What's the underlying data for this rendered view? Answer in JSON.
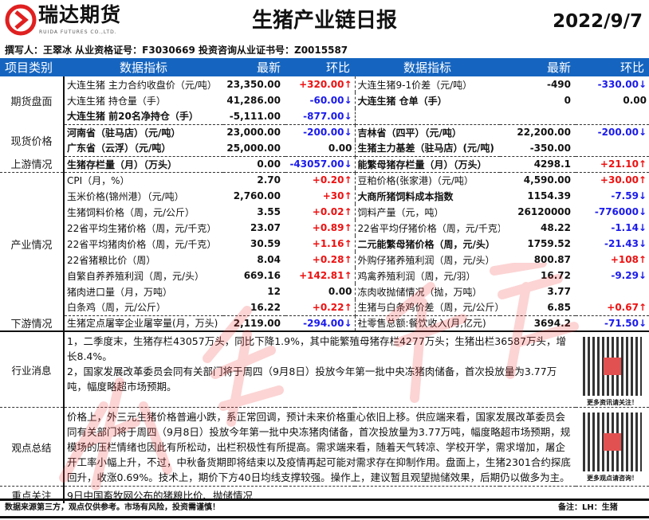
{
  "header": {
    "brand": "瑞达期货",
    "brand_en": "RUIDA FUTURES CO.,LTD.",
    "title": "生猪产业链日报",
    "date": "2022/9/7",
    "author_line": "撰写人：王翠冰  从业资格证号：F3030669   投资咨询从业证书号：Z0015587"
  },
  "columns": {
    "category": "项目类别",
    "indicator": "数据指标",
    "latest": "最新",
    "change": "环比",
    "indicator2": "数据指标",
    "latest2": "最新",
    "change2": "环比"
  },
  "sections": [
    {
      "category": "期货盘面",
      "rows": [
        [
          {
            "label": "大连生猪 主力合约收盘价（元/吨）",
            "value": "23,350.00",
            "change": "+320.00↑",
            "dir": "up"
          },
          {
            "label": "大连生猪9-1价差（元/吨）",
            "value": "-490",
            "change": "-330.00↓",
            "dir": "down"
          }
        ],
        [
          {
            "label": "大连生猪 持仓量（手）",
            "value": "41,286.00",
            "change": "-60.00↓",
            "dir": "down"
          },
          {
            "label": "大连生猪 仓单（手）",
            "bold": true,
            "value": "0",
            "change": "0.00",
            "dir": "flat"
          }
        ],
        [
          {
            "label": "大连生猪 前20名净持仓（手）",
            "bold": true,
            "value": "-5,111.00",
            "change": "-877.00↓",
            "dir": "down"
          },
          {
            "label": "",
            "value": "",
            "change": "",
            "dir": "flat"
          }
        ]
      ]
    },
    {
      "category": "现货价格",
      "rows": [
        [
          {
            "label": "河南省（驻马店）（元/吨）",
            "bold": true,
            "value": "23,000.00",
            "change": "-200.00↓",
            "dir": "down"
          },
          {
            "label": "吉林省（四平）（元/吨）",
            "bold": true,
            "value": "22,200.00",
            "change": "-200.00↓",
            "dir": "down"
          }
        ],
        [
          {
            "label": "广东省（云浮）（元/吨）",
            "bold": true,
            "value": "25,000.00",
            "change": "0.00",
            "dir": "flat"
          },
          {
            "label": "生猪主力基差（驻马店）(元/吨)",
            "bold": true,
            "value": "-350.00",
            "change": "",
            "dir": "flat"
          }
        ]
      ]
    },
    {
      "category": "上游情况",
      "rows": [
        [
          {
            "label": "生猪存栏量（月）（万头）",
            "bold": true,
            "value": "0.00",
            "change": "-43057.00↓",
            "dir": "down"
          },
          {
            "label": "能繁母猪存栏量（月）（万头）",
            "bold": true,
            "value": "4298.1",
            "change": "+21.10↑",
            "dir": "up"
          }
        ]
      ]
    },
    {
      "category": "产业情况",
      "rows": [
        [
          {
            "label": "CPI（月，%）",
            "value": "2.70",
            "change": "+0.20↑",
            "dir": "up"
          },
          {
            "label": "豆粕价格(张家港)（元/吨）",
            "value": "4,590.00",
            "change": "+30.00↑",
            "dir": "up"
          }
        ],
        [
          {
            "label": "玉米价格(锦州港）（元/吨）",
            "value": "2,760.00",
            "change": "+30↑",
            "dir": "up"
          },
          {
            "label": "大商所猪饲料成本指数",
            "bold": true,
            "value": "1154.39",
            "change": "-7.59↓",
            "dir": "down"
          }
        ],
        [
          {
            "label": "生猪饲料价格（周，元/公斤）",
            "value": "3.55",
            "change": "+0.02↑",
            "dir": "up"
          },
          {
            "label": "饲料产量（元，吨）",
            "value": "26120000",
            "change": "-776000↓",
            "dir": "down"
          }
        ],
        [
          {
            "label": "22省平均生猪价格（周，元/千克）",
            "value": "23.07",
            "change": "+0.89↑",
            "dir": "up"
          },
          {
            "label": "22省平均仔猪价格（周，元/千克）",
            "value": "48.22",
            "change": "-1.14↓",
            "dir": "down"
          }
        ],
        [
          {
            "label": "22省平均猪肉价格（周，元/千克）",
            "value": "30.59",
            "change": "+1.16↑",
            "dir": "up"
          },
          {
            "label": "二元能繁母猪价格（周，元/头）",
            "bold": true,
            "value": "1759.52",
            "change": "-21.43↓",
            "dir": "down"
          }
        ],
        [
          {
            "label": "22省猪粮比价（周）",
            "value": "8.04",
            "change": "+0.28↑",
            "dir": "up"
          },
          {
            "label": "外购仔猪养殖利润（周，元/头）",
            "value": "800.87",
            "change": "+108↑",
            "dir": "up"
          }
        ],
        [
          {
            "label": "自繁自养养殖利润（周，元/头）",
            "value": "669.16",
            "change": "+142.81↑",
            "dir": "up"
          },
          {
            "label": "鸡禽养殖利润（周，元/羽）",
            "value": "16.72",
            "change": "-9.29↓",
            "dir": "down"
          }
        ],
        [
          {
            "label": "猪肉进口量（月，万吨）",
            "value": "12",
            "change": "0.00",
            "dir": "flat"
          },
          {
            "label": "冻肉收抛储情况（抛，万吨）",
            "value": "3.77",
            "change": "",
            "dir": "flat"
          }
        ],
        [
          {
            "label": "白条鸡（周，元/公斤）",
            "value": "16.22",
            "change": "+0.22↑",
            "dir": "up"
          },
          {
            "label": "生猪与白条鸡价差（周，元/公斤）",
            "value": "6.85",
            "change": "+0.67↑",
            "dir": "up"
          }
        ]
      ]
    },
    {
      "category": "下游情况",
      "rows": [
        [
          {
            "label": "生猪定点屠宰企业屠宰量(月，万头)",
            "value": "2,119.00",
            "change": "-294.00↓",
            "dir": "down"
          },
          {
            "label": "社零售总额:餐饮收入(月,亿元)",
            "value": "3694.2",
            "change": "-71.50↓",
            "dir": "down"
          }
        ]
      ]
    }
  ],
  "news": {
    "category": "行业消息",
    "lines": [
      "1，二季度末，生猪存栏43057万头，同比下降1.9%，其中能繁殖母猪存栏4277万头；生猪出栏36587万头，增长8.4%。",
      "2，国家发展改革委员会同有关部门将于周四（9月8日）投放今年第一批中央冻猪肉储备，首次投放量为3.77万吨，幅度略超市场预期。"
    ],
    "qr_caption": "更多资讯请关注！"
  },
  "summary": {
    "category": "观点总结",
    "text": "价格上，外三元生猪价格普遍小跌，系正常回调，预计未来价格重心依旧上移。供应端来看，国家发展改革委员会同有关部门将于周四（9月8日）投放今年第一批中央冻猪肉储备，首次投放量为3.77万吨，幅度略超市场预期，规模场的压栏情绪也因此有所松动，出栏积极性有所提高。需求端来看，随着天气转凉、学校开学，需求增加，屠企开工率小幅上升，不过，中秋备货期即将结束以及疫情再起可能对需求存在抑制作用。盘面上，生猪2301合约探底回升，收涨0.69%。技术上，期价下方40日均线支撑较强。操作上，建议暂且观望抛储效果，后期仍以做多为主。",
    "qr_caption": "更多观点请咨询！"
  },
  "focus": {
    "category": "重点关注",
    "text": "9日中国畜牧网公布的猪粮比价、抛储情况"
  },
  "footer": {
    "disclaimer": "数据来源第三方，观点仅供参考。市场有风险，投资需谨慎！",
    "note": "备注：LH：生猪"
  },
  "watermark": "瑞达研究",
  "colors": {
    "header_bg": "#1565c0",
    "up": "#ee1111",
    "down": "#1a1aee",
    "brand_red": "#e02020"
  }
}
